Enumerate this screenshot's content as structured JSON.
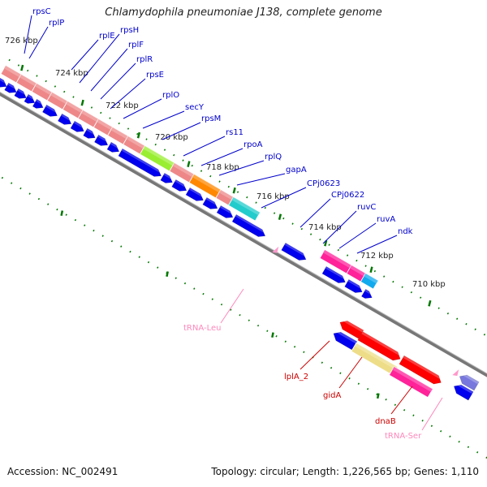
{
  "title": "Chlamydophila pneumoniae J138, complete genome",
  "accession": "Accession: NC_002491",
  "stats": "Topology: circular; Length: 1,226,565 bp; Genes: 1,110",
  "ticks": [
    "726 kbp",
    "724 kbp",
    "722 kbp",
    "720 kbp",
    "718 kbp",
    "716 kbp",
    "714 kbp",
    "712 kbp",
    "710 kbp"
  ],
  "colors": {
    "backbone": "#777777",
    "gene_blue": "#0000ee",
    "trna": "#ff99cc",
    "label_blue": "#0000cc",
    "label_red": "#cc0000",
    "label_pink": "#ff88bb",
    "tick_green": "#007700"
  },
  "gene_labels": [
    "rpsC",
    "rplP",
    "rplE",
    "rpsH",
    "rplF",
    "rplR",
    "rpsE",
    "rplO",
    "secY",
    "rpsM",
    "rs11",
    "rpoA",
    "rplQ",
    "gapA",
    "CPj0623",
    "CPj0622",
    "ruvC",
    "ruvA",
    "ndk"
  ],
  "lower_labels": [
    "lplA_2",
    "gidA",
    "dnaB"
  ],
  "trna_labels": [
    "tRNA-Leu",
    "tRNA-Ser"
  ]
}
